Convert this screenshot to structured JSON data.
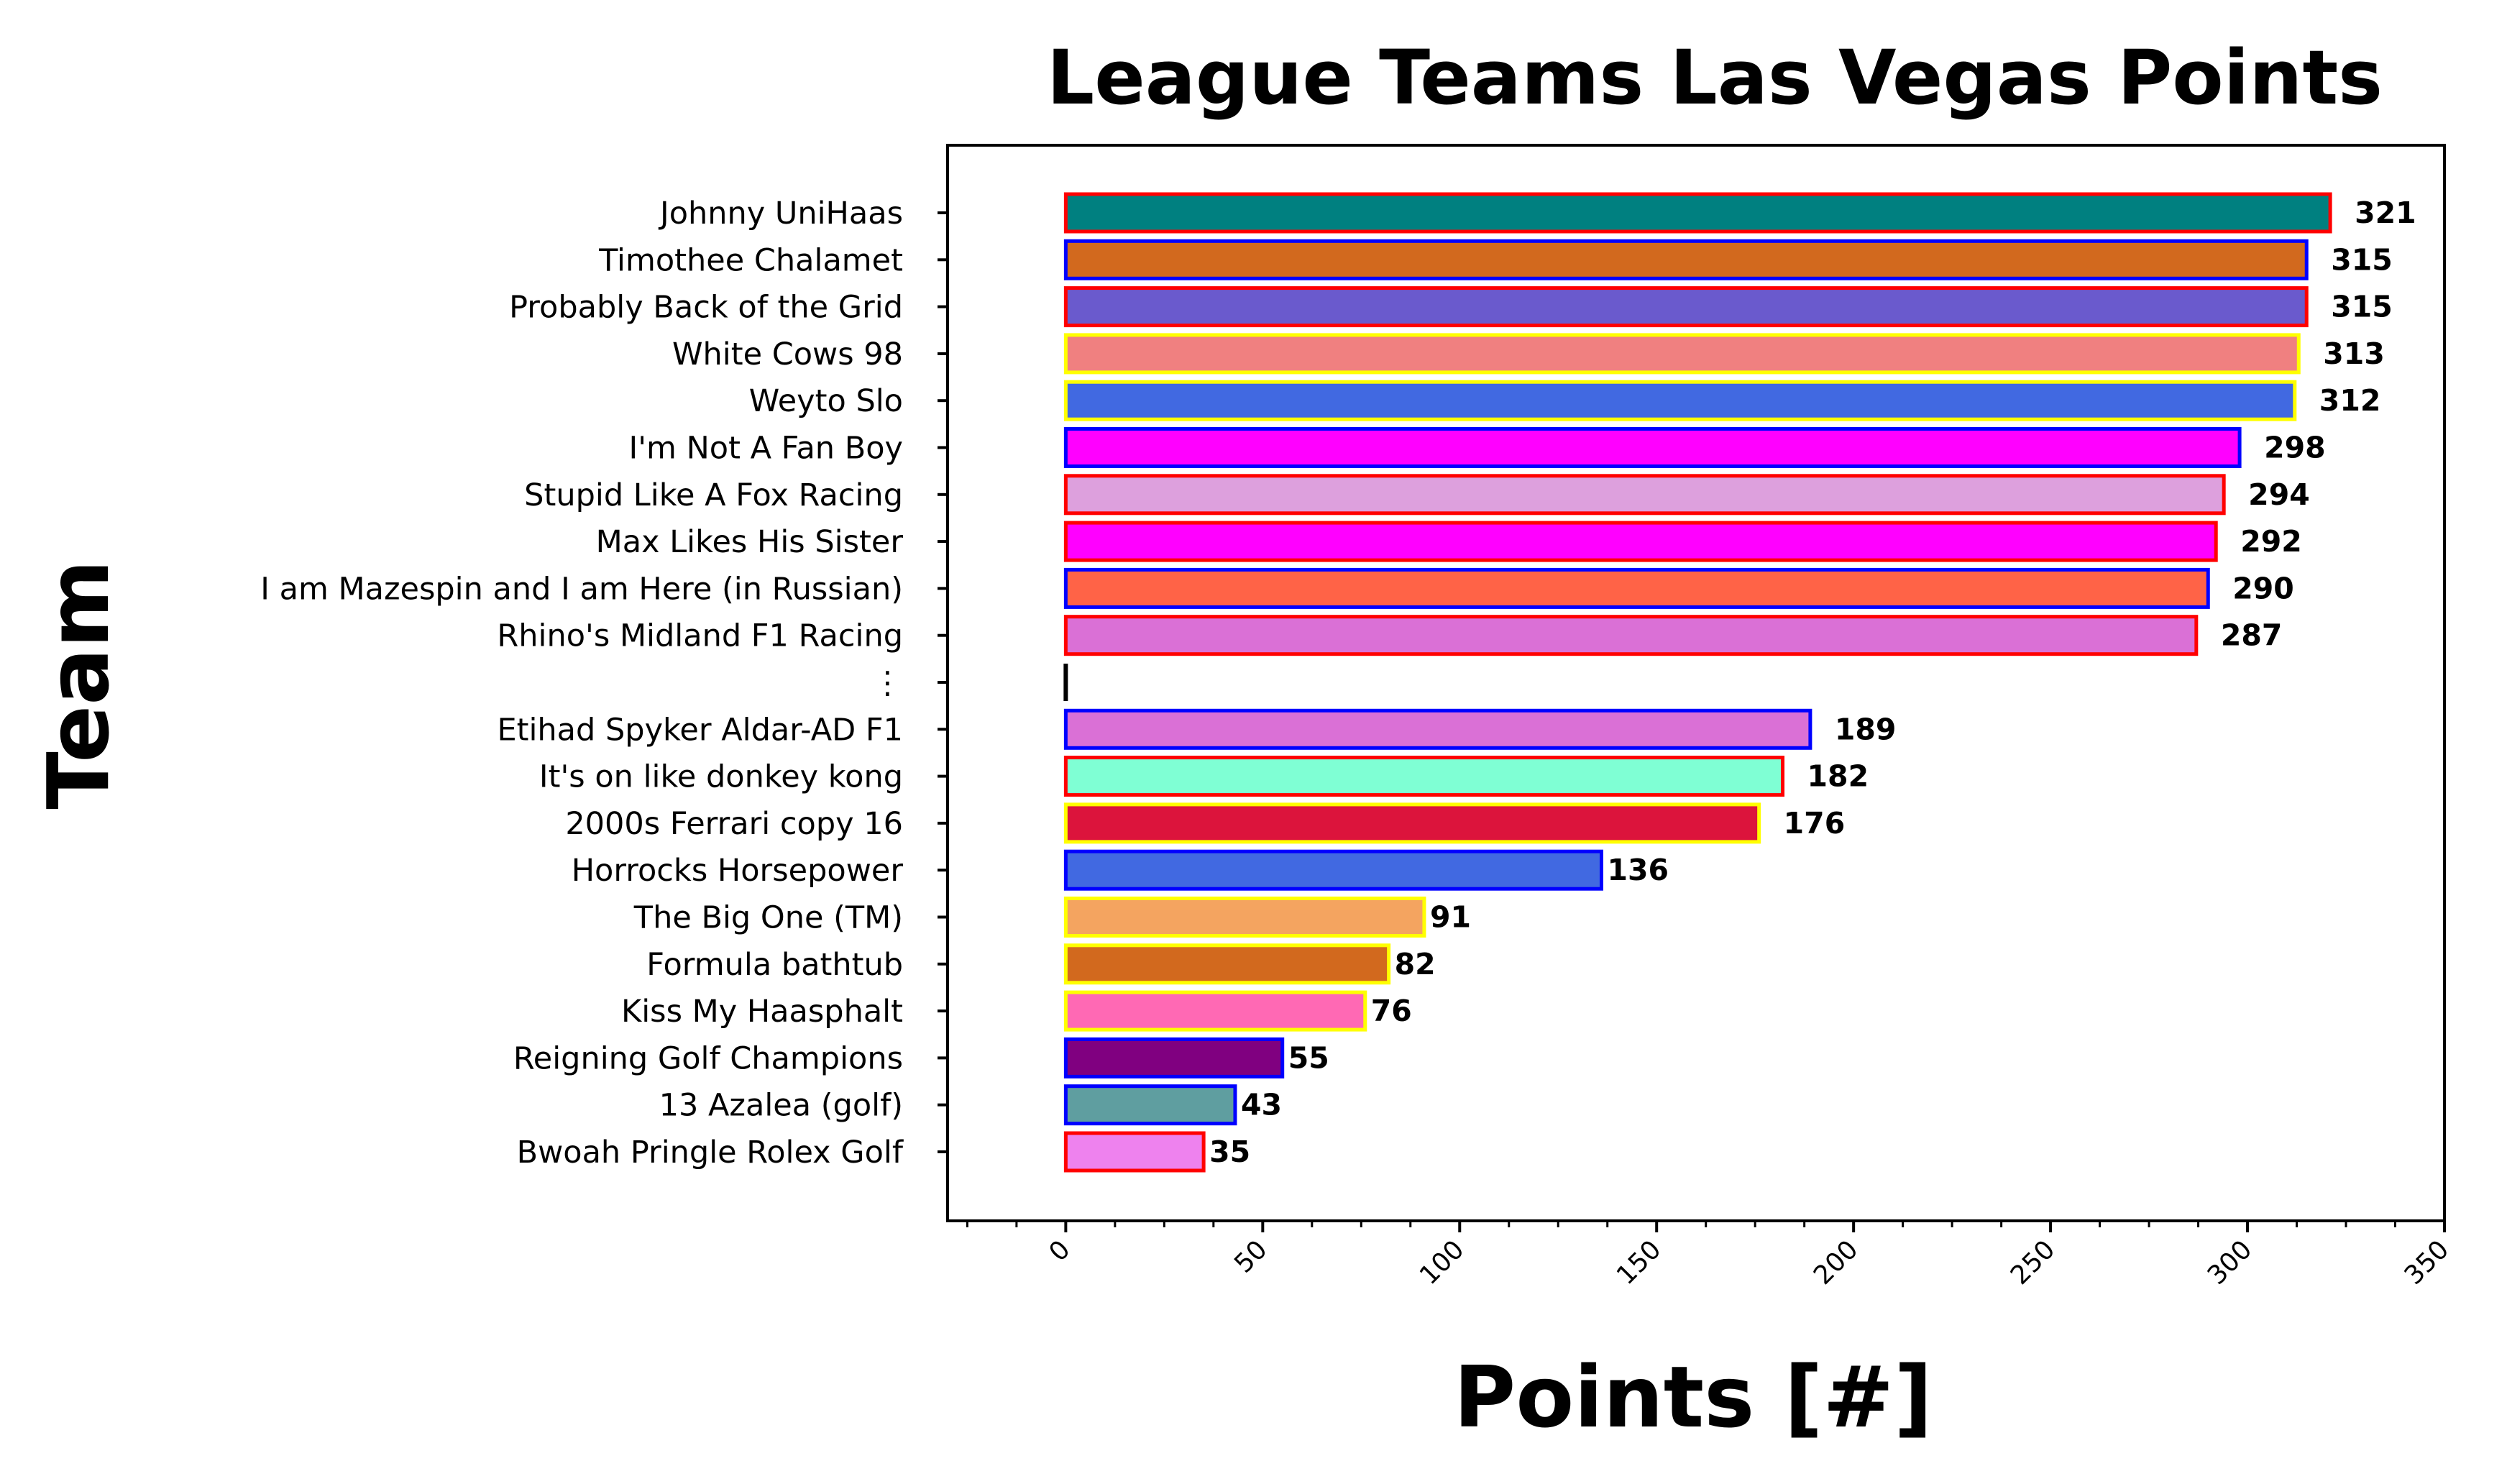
{
  "chart_data": {
    "type": "bar",
    "orientation": "horizontal",
    "title": "League Teams Las Vegas Points",
    "xlabel": "Points [#]",
    "ylabel": "Team",
    "xlim": [
      -30,
      350
    ],
    "xticks": [
      0,
      50,
      100,
      150,
      200,
      250,
      300,
      350
    ],
    "grid": false,
    "categories": [
      "Johnny UniHaas",
      "Timothee Chalamet",
      "Probably Back of the Grid",
      "White Cows 98",
      "Weyto Slo",
      "I'm Not A Fan Boy",
      "Stupid Like A Fox Racing",
      "Max Likes His Sister",
      "I am Mazespin and I am Here (in Russian)",
      "Rhino's Midland F1 Racing",
      "⋮",
      "Etihad Spyker Aldar-AD F1",
      "It's on like donkey kong",
      "2000s Ferrari copy 16",
      "Horrocks Horsepower",
      "The Big One (TM)",
      "Formula bathtub",
      "Kiss My Haasphalt",
      "Reigning Golf Champions",
      "13 Azalea (golf)",
      "Bwoah Pringle Rolex Golf"
    ],
    "values": [
      321,
      315,
      315,
      313,
      312,
      298,
      294,
      292,
      290,
      287,
      0,
      189,
      182,
      176,
      136,
      91,
      82,
      76,
      55,
      43,
      35
    ],
    "value_labels": [
      "321",
      "315",
      "315",
      "313",
      "312",
      "298",
      "294",
      "292",
      "290",
      "287",
      "",
      "189",
      "182",
      "176",
      "136",
      "91",
      "82",
      "76",
      "55",
      "43",
      "35"
    ],
    "fill_colors": [
      "#008080",
      "#D2691E",
      "#6A5ACD",
      "#F08080",
      "#4169E1",
      "#FF00FF",
      "#DDA0DD",
      "#FF00FF",
      "#FF6347",
      "#DA70D6",
      "#000000",
      "#DA70D6",
      "#7FFFD4",
      "#DC143C",
      "#4169E1",
      "#F4A460",
      "#D2691E",
      "#FF69B4",
      "#800080",
      "#5F9EA0",
      "#EE82EE"
    ],
    "edge_colors": [
      "#FF0000",
      "#0000FF",
      "#FF0000",
      "#FFFF00",
      "#FFFF00",
      "#0000FF",
      "#FF0000",
      "#FF0000",
      "#0000FF",
      "#FF0000",
      "#000000",
      "#0000FF",
      "#FF0000",
      "#FFFF00",
      "#0000FF",
      "#FFFF00",
      "#FFFF00",
      "#FFFF00",
      "#0000FF",
      "#0000FF",
      "#FF0000"
    ]
  }
}
